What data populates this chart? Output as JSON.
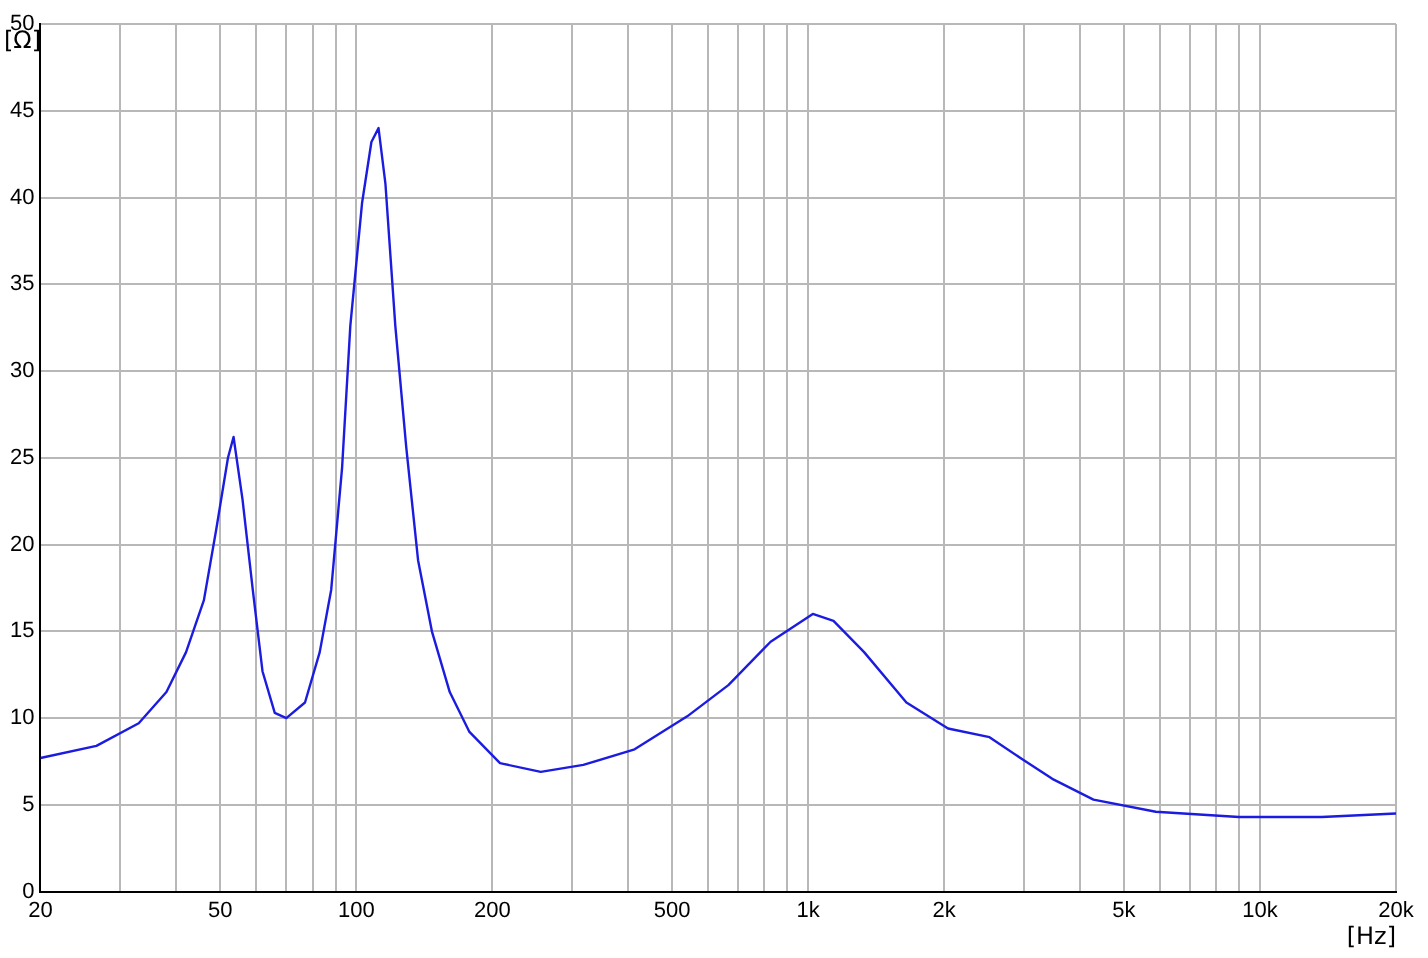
{
  "chart_data": {
    "type": "line",
    "xlabel": "[Hz]",
    "ylabel": "[Ω]",
    "x": [
      20,
      26.6,
      33,
      38,
      42,
      46,
      49,
      52,
      53.5,
      56,
      59,
      62,
      66,
      70,
      77,
      83,
      88,
      93,
      97,
      103,
      108,
      112,
      116,
      122,
      129,
      137,
      147,
      161,
      178,
      208,
      256,
      318,
      413,
      540,
      666,
      826,
      1024,
      1138,
      1330,
      1650,
      2040,
      2520,
      2950,
      3470,
      4280,
      5880,
      8980,
      13700,
      20000
    ],
    "series": [
      {
        "color": "#1c1ce0",
        "values": [
          7.7,
          8.4,
          9.7,
          11.5,
          13.8,
          16.8,
          20.9,
          25,
          26.2,
          22.6,
          17.4,
          12.7,
          10.3,
          10,
          10.9,
          13.8,
          17.4,
          24.4,
          32.6,
          39.7,
          43.2,
          44,
          40.8,
          32.6,
          25.6,
          19.1,
          15,
          11.5,
          9.2,
          7.4,
          6.9,
          7.3,
          8.2,
          10.1,
          11.9,
          14.4,
          16,
          15.6,
          13.8,
          10.9,
          9.4,
          8.9,
          7.7,
          6.5,
          5.3,
          4.6,
          4.3,
          4.3,
          4.5
        ]
      }
    ],
    "log": "x",
    "xlim": [
      20,
      20000
    ],
    "xticks": [
      20,
      {
        "value": 30,
        "label": null
      },
      {
        "value": 40,
        "label": null
      },
      50,
      {
        "value": 60,
        "label": null
      },
      {
        "value": 70,
        "label": null
      },
      {
        "value": 80,
        "label": null
      },
      {
        "value": 90,
        "label": null
      },
      100,
      200,
      {
        "value": 300,
        "label": null
      },
      {
        "value": 400,
        "label": null
      },
      500,
      {
        "value": 600,
        "label": null
      },
      {
        "value": 700,
        "label": null
      },
      {
        "value": 800,
        "label": null
      },
      {
        "value": 900,
        "label": null
      },
      {
        "value": 1000,
        "label": "1k"
      },
      {
        "value": 2000,
        "label": "2k"
      },
      {
        "value": 3000,
        "label": null
      },
      {
        "value": 4000,
        "label": null
      },
      {
        "value": 5000,
        "label": "5k"
      },
      {
        "value": 6000,
        "label": null
      },
      {
        "value": 7000,
        "label": null
      },
      {
        "value": 8000,
        "label": null
      },
      {
        "value": 9000,
        "label": null
      },
      {
        "value": 10000,
        "label": "10k"
      },
      {
        "value": 20000,
        "label": "20k"
      }
    ],
    "ylim": [
      0,
      50
    ],
    "yticks": [
      0,
      5,
      10,
      15,
      20,
      25,
      30,
      35,
      40,
      45,
      50
    ],
    "grid": true,
    "legend": false,
    "marker": "none",
    "line_style": "solid"
  }
}
